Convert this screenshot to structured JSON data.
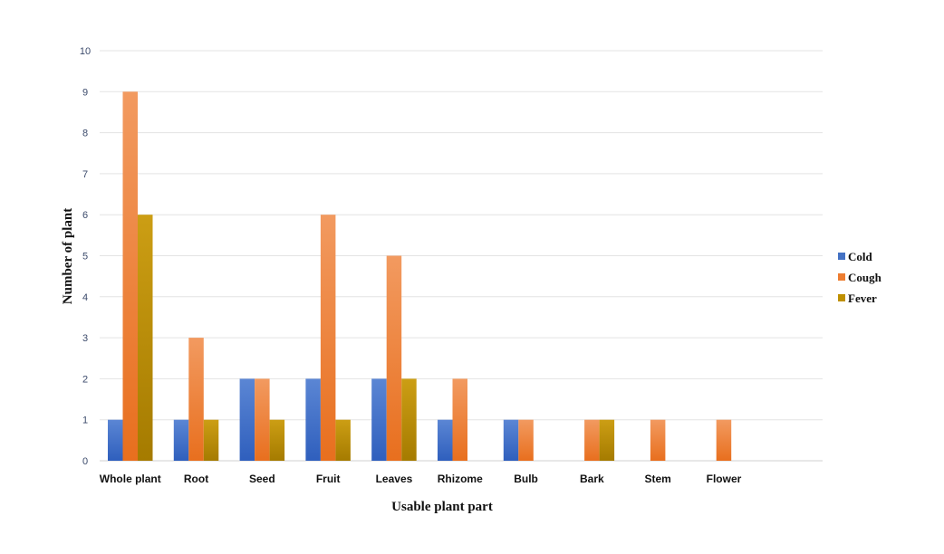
{
  "chart_data": {
    "type": "bar",
    "xlabel": "Usable plant part",
    "ylabel": "Number of plant",
    "ylim": [
      0,
      10
    ],
    "yticks": [
      0,
      1,
      2,
      3,
      4,
      5,
      6,
      7,
      8,
      9,
      10
    ],
    "grid": true,
    "legend_position": "right",
    "categories": [
      "Whole plant",
      "Root",
      "Seed",
      "Fruit",
      "Leaves",
      "Rhizome",
      "Bulb",
      "Bark",
      "Stem",
      "Flower"
    ],
    "series": [
      {
        "name": "Cold",
        "color": "#4472C4",
        "values": [
          1,
          1,
          2,
          2,
          2,
          1,
          1,
          0,
          0,
          0
        ]
      },
      {
        "name": "Cough",
        "color": "#ED7D31",
        "values": [
          9,
          3,
          2,
          6,
          5,
          2,
          1,
          1,
          1,
          1
        ]
      },
      {
        "name": "Fever",
        "color": "#BF9000",
        "values": [
          6,
          1,
          1,
          1,
          2,
          0,
          0,
          1,
          0,
          0
        ]
      }
    ]
  }
}
